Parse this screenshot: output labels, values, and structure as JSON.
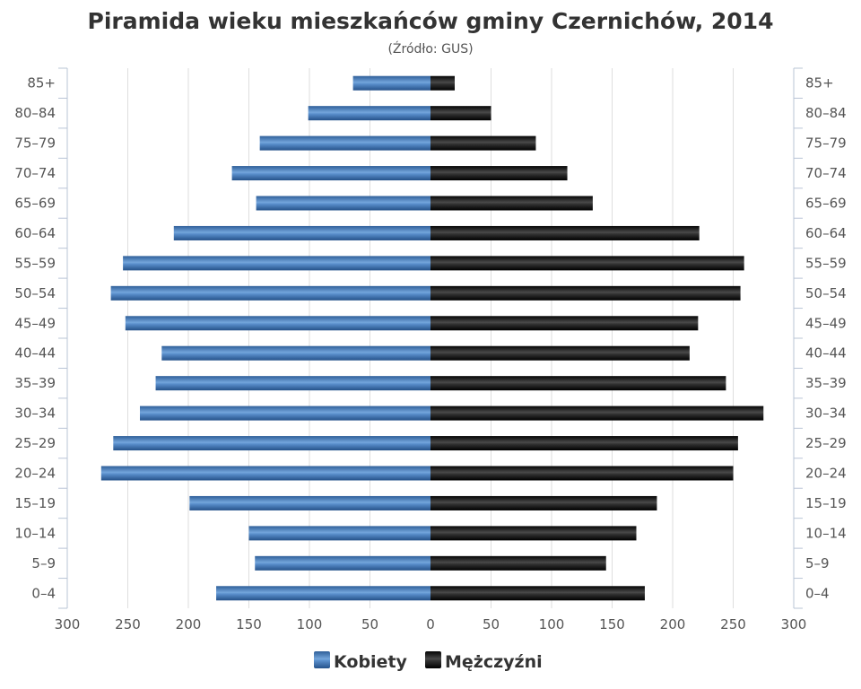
{
  "colors": {
    "female": "#3a73b0",
    "male": "#151515",
    "grid": "#dedede",
    "axis": "#b8c4d6"
  },
  "chart_data": {
    "type": "bar",
    "orientation": "horizontal-population-pyramid",
    "title": "Piramida wieku mieszkańców gminy Czernichów, 2014",
    "subtitle": "(Źródło: GUS)",
    "categories": [
      "0–4",
      "5–9",
      "10–14",
      "15–19",
      "20–24",
      "25–29",
      "30–34",
      "35–39",
      "40–44",
      "45–49",
      "50–54",
      "55–59",
      "60–64",
      "65–69",
      "70–74",
      "75–79",
      "80–84",
      "85+"
    ],
    "series": [
      {
        "name": "Kobiety",
        "side": "left",
        "values": [
          177,
          145,
          150,
          199,
          272,
          262,
          240,
          227,
          222,
          252,
          264,
          254,
          212,
          144,
          164,
          141,
          101,
          64
        ]
      },
      {
        "name": "Mężczyźni",
        "side": "right",
        "values": [
          177,
          145,
          170,
          187,
          250,
          254,
          275,
          244,
          214,
          221,
          256,
          259,
          222,
          134,
          113,
          87,
          50,
          20
        ]
      }
    ],
    "xlim": [
      -300,
      300
    ],
    "x_ticks": [
      -300,
      -250,
      -200,
      -150,
      -100,
      -50,
      0,
      50,
      100,
      150,
      200,
      250,
      300
    ],
    "x_tick_labels": [
      "300",
      "250",
      "200",
      "150",
      "100",
      "50",
      "0",
      "50",
      "100",
      "150",
      "200",
      "250",
      "300"
    ],
    "grid": true,
    "legend_position": "bottom-center",
    "category_axis_labels": "both-sides"
  }
}
